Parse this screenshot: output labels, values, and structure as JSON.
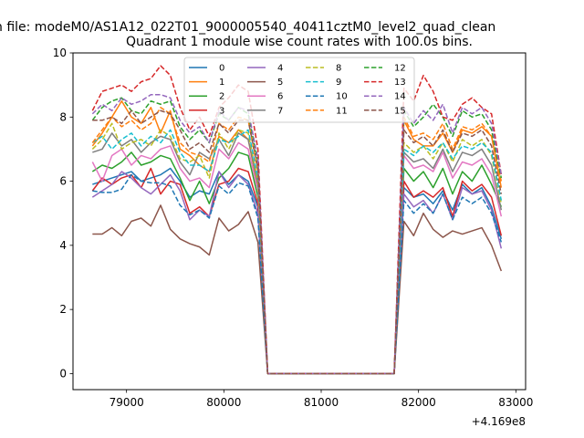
{
  "chart_data": {
    "type": "line",
    "suptitle": "n file: modeM0/AS1A12_022T01_9000005540_40411cztM0_level2_quad_clean",
    "title": "Quadrant 1 module wise count rates with 100.0s bins.",
    "xlabel": "",
    "ylabel": "",
    "x_offset_text": "+4.169e8",
    "xlim": [
      78450,
      83100
    ],
    "ylim": [
      -0.5,
      10
    ],
    "xticks": [
      79000,
      80000,
      81000,
      82000,
      83000
    ],
    "yticks": [
      0,
      2,
      4,
      6,
      8,
      10
    ],
    "grid": false,
    "legend_position": "upper center",
    "legend_columns": 4,
    "x": [
      78650,
      78750,
      78850,
      78950,
      79050,
      79150,
      79250,
      79350,
      79450,
      79550,
      79650,
      79750,
      79850,
      79950,
      80050,
      80150,
      80250,
      80350,
      80450,
      80550,
      80650,
      80750,
      80850,
      80950,
      81050,
      81150,
      81250,
      81350,
      81450,
      81550,
      81650,
      81750,
      81850,
      81950,
      82050,
      82150,
      82250,
      82350,
      82450,
      82550,
      82650,
      82750,
      82850
    ],
    "series": [
      {
        "name": "0",
        "color": "#1f77b4",
        "dash": "solid",
        "values": [
          5.9,
          6.0,
          6.1,
          6.2,
          6.3,
          6.0,
          6.1,
          6.2,
          6.4,
          6.0,
          5.5,
          5.7,
          5.6,
          6.3,
          5.9,
          6.2,
          6.0,
          5.2,
          0,
          0,
          0,
          0,
          0,
          0,
          0,
          0,
          0,
          0,
          0,
          0,
          0,
          0,
          5.8,
          5.5,
          5.6,
          5.3,
          5.7,
          5.1,
          5.9,
          5.6,
          5.8,
          5.2,
          4.2
        ]
      },
      {
        "name": "1",
        "color": "#ff7f0e",
        "dash": "solid",
        "values": [
          7.1,
          7.5,
          8.0,
          8.5,
          8.0,
          7.8,
          8.3,
          7.5,
          8.2,
          7.0,
          6.8,
          6.5,
          6.3,
          7.4,
          7.2,
          7.6,
          7.3,
          5.8,
          0,
          0,
          0,
          0,
          0,
          0,
          0,
          0,
          0,
          0,
          0,
          0,
          0,
          0,
          7.9,
          7.3,
          7.1,
          7.1,
          7.5,
          6.9,
          7.6,
          7.5,
          7.7,
          7.4,
          5.8
        ]
      },
      {
        "name": "2",
        "color": "#2ca02c",
        "dash": "solid",
        "values": [
          6.3,
          6.5,
          6.4,
          6.6,
          6.9,
          6.5,
          6.6,
          6.8,
          6.7,
          6.1,
          5.4,
          6.0,
          5.3,
          6.1,
          6.4,
          6.9,
          6.8,
          5.5,
          0,
          0,
          0,
          0,
          0,
          0,
          0,
          0,
          0,
          0,
          0,
          0,
          0,
          0,
          6.4,
          6.0,
          6.3,
          5.8,
          6.4,
          5.6,
          6.3,
          6.0,
          6.5,
          5.9,
          5.2
        ]
      },
      {
        "name": "3",
        "color": "#d62728",
        "dash": "solid",
        "values": [
          5.7,
          6.1,
          5.9,
          6.1,
          6.2,
          5.8,
          6.4,
          5.6,
          6.0,
          5.9,
          5.0,
          5.2,
          4.9,
          5.9,
          6.0,
          6.4,
          6.3,
          5.3,
          0,
          0,
          0,
          0,
          0,
          0,
          0,
          0,
          0,
          0,
          0,
          0,
          0,
          0,
          6.0,
          5.5,
          5.7,
          5.5,
          5.8,
          4.9,
          6.0,
          5.7,
          5.9,
          5.5,
          4.3
        ]
      },
      {
        "name": "4",
        "color": "#9467bd",
        "dash": "solid",
        "values": [
          5.5,
          5.7,
          5.9,
          6.3,
          6.1,
          5.8,
          5.6,
          5.9,
          6.2,
          5.7,
          4.8,
          5.1,
          4.9,
          6.3,
          5.8,
          6.2,
          5.9,
          5.0,
          0,
          0,
          0,
          0,
          0,
          0,
          0,
          0,
          0,
          0,
          0,
          0,
          0,
          0,
          5.6,
          5.2,
          5.4,
          5.0,
          5.6,
          4.8,
          5.8,
          5.6,
          5.7,
          5.1,
          3.9
        ]
      },
      {
        "name": "5",
        "color": "#8c564b",
        "dash": "solid",
        "values": [
          4.35,
          4.35,
          4.55,
          4.3,
          4.75,
          4.85,
          4.6,
          5.25,
          4.5,
          4.2,
          4.05,
          3.95,
          3.7,
          4.85,
          4.45,
          4.65,
          5.05,
          4.1,
          0,
          0,
          0,
          0,
          0,
          0,
          0,
          0,
          0,
          0,
          0,
          0,
          0,
          0,
          4.75,
          4.3,
          5.0,
          4.5,
          4.25,
          4.45,
          4.35,
          4.45,
          4.55,
          4.0,
          3.2
        ]
      },
      {
        "name": "6",
        "color": "#e377c2",
        "dash": "solid",
        "values": [
          6.6,
          6.0,
          6.8,
          7.0,
          6.5,
          6.8,
          6.7,
          7.0,
          7.1,
          6.4,
          6.0,
          6.1,
          5.8,
          7.0,
          6.7,
          7.2,
          7.0,
          5.7,
          0,
          0,
          0,
          0,
          0,
          0,
          0,
          0,
          0,
          0,
          0,
          0,
          0,
          0,
          6.8,
          6.4,
          6.5,
          6.3,
          6.9,
          6.1,
          6.6,
          6.5,
          6.7,
          6.2,
          4.9
        ]
      },
      {
        "name": "7",
        "color": "#7f7f7f",
        "dash": "solid",
        "values": [
          6.9,
          7.0,
          7.5,
          7.1,
          7.3,
          6.9,
          7.2,
          7.4,
          7.3,
          6.6,
          6.2,
          6.9,
          6.7,
          7.3,
          6.8,
          7.5,
          7.3,
          5.9,
          0,
          0,
          0,
          0,
          0,
          0,
          0,
          0,
          0,
          0,
          0,
          0,
          0,
          0,
          6.9,
          6.6,
          6.7,
          6.4,
          7.0,
          6.3,
          6.9,
          6.8,
          7.0,
          6.5,
          5.1
        ]
      },
      {
        "name": "8",
        "color": "#bcbd22",
        "dash": "dashed",
        "values": [
          7.0,
          7.3,
          7.8,
          7.0,
          7.2,
          7.3,
          7.1,
          7.6,
          7.4,
          6.7,
          6.6,
          6.8,
          6.1,
          7.5,
          7.0,
          7.6,
          7.5,
          6.0,
          0,
          0,
          0,
          0,
          0,
          0,
          0,
          0,
          0,
          0,
          0,
          0,
          0,
          0,
          7.2,
          6.9,
          7.1,
          6.7,
          7.2,
          6.6,
          7.3,
          7.1,
          7.3,
          6.8,
          5.3
        ]
      },
      {
        "name": "9",
        "color": "#17becf",
        "dash": "dashed",
        "values": [
          7.2,
          7.4,
          7.0,
          7.3,
          7.5,
          7.1,
          7.4,
          7.2,
          7.6,
          6.9,
          6.5,
          6.5,
          6.3,
          7.3,
          7.2,
          7.4,
          7.6,
          6.1,
          0,
          0,
          0,
          0,
          0,
          0,
          0,
          0,
          0,
          0,
          0,
          0,
          0,
          0,
          7.0,
          6.8,
          7.1,
          6.9,
          7.2,
          6.7,
          7.1,
          7.0,
          7.2,
          6.9,
          5.4
        ]
      },
      {
        "name": "10",
        "color": "#1f77b4",
        "dash": "dashed",
        "values": [
          5.7,
          5.65,
          5.65,
          5.75,
          6.2,
          6.0,
          5.95,
          5.95,
          5.85,
          5.25,
          4.95,
          5.1,
          4.85,
          5.85,
          5.6,
          5.95,
          5.85,
          4.85,
          0,
          0,
          0,
          0,
          0,
          0,
          0,
          0,
          0,
          0,
          0,
          0,
          0,
          0,
          5.4,
          5.0,
          5.3,
          5.0,
          5.6,
          4.8,
          5.5,
          5.3,
          5.5,
          5.0,
          4.1
        ]
      },
      {
        "name": "11",
        "color": "#ff7f0e",
        "dash": "dashed",
        "values": [
          7.2,
          7.6,
          8.0,
          7.7,
          7.9,
          7.6,
          7.8,
          8.3,
          8.1,
          7.2,
          6.9,
          6.8,
          6.6,
          7.8,
          7.6,
          8.0,
          7.9,
          6.3,
          0,
          0,
          0,
          0,
          0,
          0,
          0,
          0,
          0,
          0,
          0,
          0,
          0,
          0,
          8.0,
          7.4,
          7.5,
          7.3,
          7.8,
          7.0,
          7.7,
          7.6,
          7.8,
          7.4,
          6.0
        ]
      },
      {
        "name": "12",
        "color": "#2ca02c",
        "dash": "dashed",
        "values": [
          7.9,
          8.3,
          8.5,
          8.6,
          8.2,
          8.1,
          8.5,
          8.4,
          8.5,
          7.7,
          7.3,
          7.6,
          7.2,
          8.1,
          7.9,
          8.3,
          8.1,
          6.6,
          0,
          0,
          0,
          0,
          0,
          0,
          0,
          0,
          0,
          0,
          0,
          0,
          0,
          0,
          8.2,
          7.7,
          8.0,
          8.4,
          8.0,
          7.4,
          8.2,
          8.0,
          8.1,
          7.6,
          6.1
        ]
      },
      {
        "name": "13",
        "color": "#d62728",
        "dash": "dashed",
        "values": [
          8.2,
          8.8,
          8.9,
          9.0,
          8.8,
          9.1,
          9.2,
          9.6,
          9.3,
          8.3,
          7.6,
          8.0,
          7.4,
          8.3,
          8.6,
          9.0,
          8.8,
          7.0,
          0,
          0,
          0,
          0,
          0,
          0,
          0,
          0,
          0,
          0,
          0,
          0,
          0,
          0,
          8.9,
          8.5,
          9.3,
          8.8,
          8.0,
          7.9,
          8.4,
          8.6,
          8.3,
          8.1,
          6.2
        ]
      },
      {
        "name": "14",
        "color": "#9467bd",
        "dash": "dashed",
        "values": [
          8.1,
          8.4,
          8.2,
          8.6,
          8.4,
          8.5,
          8.7,
          8.7,
          8.6,
          7.9,
          7.5,
          7.7,
          7.2,
          8.2,
          7.9,
          8.3,
          8.2,
          6.7,
          0,
          0,
          0,
          0,
          0,
          0,
          0,
          0,
          0,
          0,
          0,
          0,
          0,
          0,
          8.3,
          7.8,
          8.2,
          7.9,
          8.4,
          7.5,
          8.3,
          8.1,
          8.3,
          7.8,
          6.2
        ]
      },
      {
        "name": "15",
        "color": "#8c564b",
        "dash": "dashed",
        "values": [
          7.9,
          7.9,
          8.0,
          7.8,
          8.2,
          7.8,
          8.0,
          8.2,
          8.1,
          7.6,
          7.0,
          7.2,
          6.9,
          7.8,
          7.5,
          7.9,
          7.9,
          6.4,
          0,
          0,
          0,
          0,
          0,
          0,
          0,
          0,
          0,
          0,
          0,
          0,
          0,
          0,
          7.6,
          7.2,
          7.4,
          7.1,
          7.6,
          6.9,
          7.5,
          7.4,
          7.6,
          7.1,
          5.6
        ]
      }
    ]
  }
}
